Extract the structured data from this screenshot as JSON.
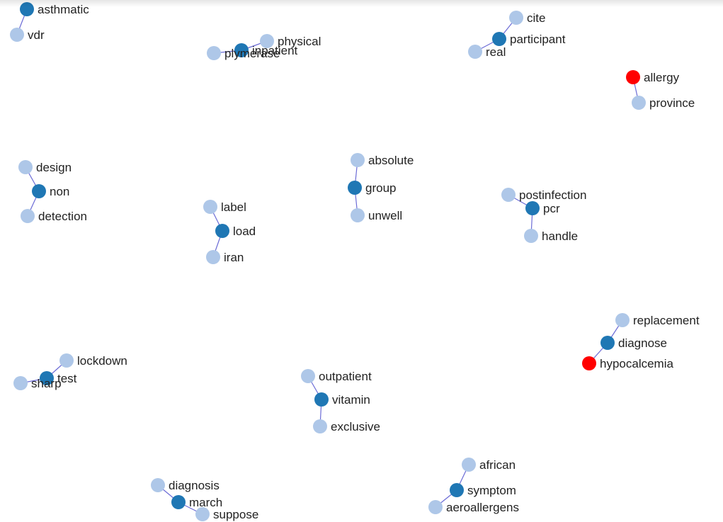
{
  "colors": {
    "hub": "#1f77b4",
    "leaf": "#aec7e8",
    "flagged": "#ff0000",
    "edge": "#6b6bd6"
  },
  "graph": {
    "nodes": [
      {
        "id": "asthmatic",
        "label": "asthmatic",
        "kind": "hub"
      },
      {
        "id": "vdr",
        "label": "vdr",
        "kind": "leaf"
      },
      {
        "id": "physical",
        "label": "physical",
        "kind": "leaf"
      },
      {
        "id": "inpatient",
        "label": "inpatient",
        "kind": "hub"
      },
      {
        "id": "plymerase",
        "label": "plymerase",
        "kind": "leaf"
      },
      {
        "id": "cite",
        "label": "cite",
        "kind": "leaf"
      },
      {
        "id": "participant",
        "label": "participant",
        "kind": "hub"
      },
      {
        "id": "real",
        "label": "real",
        "kind": "leaf"
      },
      {
        "id": "allergy",
        "label": "allergy",
        "kind": "flagged"
      },
      {
        "id": "province",
        "label": "province",
        "kind": "leaf"
      },
      {
        "id": "design",
        "label": "design",
        "kind": "leaf"
      },
      {
        "id": "non",
        "label": "non",
        "kind": "hub"
      },
      {
        "id": "detection",
        "label": "detection",
        "kind": "leaf"
      },
      {
        "id": "label",
        "label": "label",
        "kind": "leaf"
      },
      {
        "id": "load",
        "label": "load",
        "kind": "hub"
      },
      {
        "id": "iran",
        "label": "iran",
        "kind": "leaf"
      },
      {
        "id": "absolute",
        "label": "absolute",
        "kind": "leaf"
      },
      {
        "id": "group",
        "label": "group",
        "kind": "hub"
      },
      {
        "id": "unwell",
        "label": "unwell",
        "kind": "leaf"
      },
      {
        "id": "postinfection",
        "label": "postinfection",
        "kind": "leaf"
      },
      {
        "id": "pcr",
        "label": "pcr",
        "kind": "hub"
      },
      {
        "id": "handle",
        "label": "handle",
        "kind": "leaf"
      },
      {
        "id": "replacement",
        "label": "replacement",
        "kind": "leaf"
      },
      {
        "id": "diagnose",
        "label": "diagnose",
        "kind": "hub"
      },
      {
        "id": "hypocalcemia",
        "label": "hypocalcemia",
        "kind": "flagged"
      },
      {
        "id": "lockdown",
        "label": "lockdown",
        "kind": "leaf"
      },
      {
        "id": "test",
        "label": "test",
        "kind": "hub"
      },
      {
        "id": "sharp",
        "label": "sharp",
        "kind": "leaf"
      },
      {
        "id": "outpatient",
        "label": "outpatient",
        "kind": "leaf"
      },
      {
        "id": "vitamin",
        "label": "vitamin",
        "kind": "hub"
      },
      {
        "id": "exclusive",
        "label": "exclusive",
        "kind": "leaf"
      },
      {
        "id": "african",
        "label": "african",
        "kind": "leaf"
      },
      {
        "id": "symptom",
        "label": "symptom",
        "kind": "hub"
      },
      {
        "id": "aeroallergens",
        "label": "aeroallergens",
        "kind": "leaf"
      },
      {
        "id": "diagnosis",
        "label": "diagnosis",
        "kind": "leaf"
      },
      {
        "id": "march",
        "label": "march",
        "kind": "hub"
      },
      {
        "id": "suppose",
        "label": "suppose",
        "kind": "leaf"
      }
    ],
    "edges": [
      [
        "asthmatic",
        "vdr"
      ],
      [
        "inpatient",
        "physical"
      ],
      [
        "inpatient",
        "plymerase"
      ],
      [
        "participant",
        "cite"
      ],
      [
        "participant",
        "real"
      ],
      [
        "allergy",
        "province"
      ],
      [
        "non",
        "design"
      ],
      [
        "non",
        "detection"
      ],
      [
        "load",
        "label"
      ],
      [
        "load",
        "iran"
      ],
      [
        "group",
        "absolute"
      ],
      [
        "group",
        "unwell"
      ],
      [
        "pcr",
        "postinfection"
      ],
      [
        "pcr",
        "handle"
      ],
      [
        "diagnose",
        "replacement"
      ],
      [
        "diagnose",
        "hypocalcemia"
      ],
      [
        "test",
        "lockdown"
      ],
      [
        "test",
        "sharp"
      ],
      [
        "vitamin",
        "outpatient"
      ],
      [
        "vitamin",
        "exclusive"
      ],
      [
        "symptom",
        "african"
      ],
      [
        "symptom",
        "aeroallergens"
      ],
      [
        "march",
        "diagnosis"
      ],
      [
        "march",
        "suppose"
      ]
    ]
  }
}
